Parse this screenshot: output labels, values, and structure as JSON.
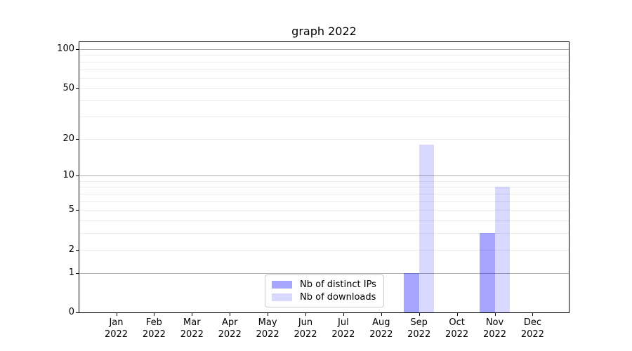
{
  "title": "graph 2022",
  "chart_data": {
    "type": "bar",
    "title": "graph 2022",
    "categories": [
      "Jan 2022",
      "Feb 2022",
      "Mar 2022",
      "Apr 2022",
      "May 2022",
      "Jun 2022",
      "Jul 2022",
      "Aug 2022",
      "Sep 2022",
      "Oct 2022",
      "Nov 2022",
      "Dec 2022"
    ],
    "series": [
      {
        "name": "Nb of distinct IPs",
        "color": "rgba(0,0,255,0.35)",
        "values": [
          0,
          0,
          0,
          0,
          0,
          0,
          0,
          0,
          1,
          0,
          3,
          0
        ]
      },
      {
        "name": "Nb of downloads",
        "color": "rgba(0,0,255,0.15)",
        "values": [
          0,
          0,
          0,
          0,
          0,
          0,
          0,
          0,
          18,
          0,
          8,
          0
        ]
      }
    ],
    "xlabel": "",
    "ylabel": "",
    "yscale": "log(1+x)",
    "ylim": [
      0,
      113
    ],
    "y_ticks": [
      0,
      1,
      2,
      5,
      10,
      20,
      50,
      100
    ],
    "y_major_gridlines": [
      1,
      10,
      100
    ],
    "y_minor_gridlines": [
      2,
      3,
      4,
      5,
      6,
      7,
      8,
      9,
      20,
      30,
      40,
      50,
      60,
      70,
      80,
      90
    ],
    "grid": true,
    "legend_position": "lower center",
    "colors": {
      "grid_major": "#aaaaaa",
      "grid_minor": "#ebebeb",
      "axis": "#000000",
      "background": "#ffffff"
    }
  }
}
